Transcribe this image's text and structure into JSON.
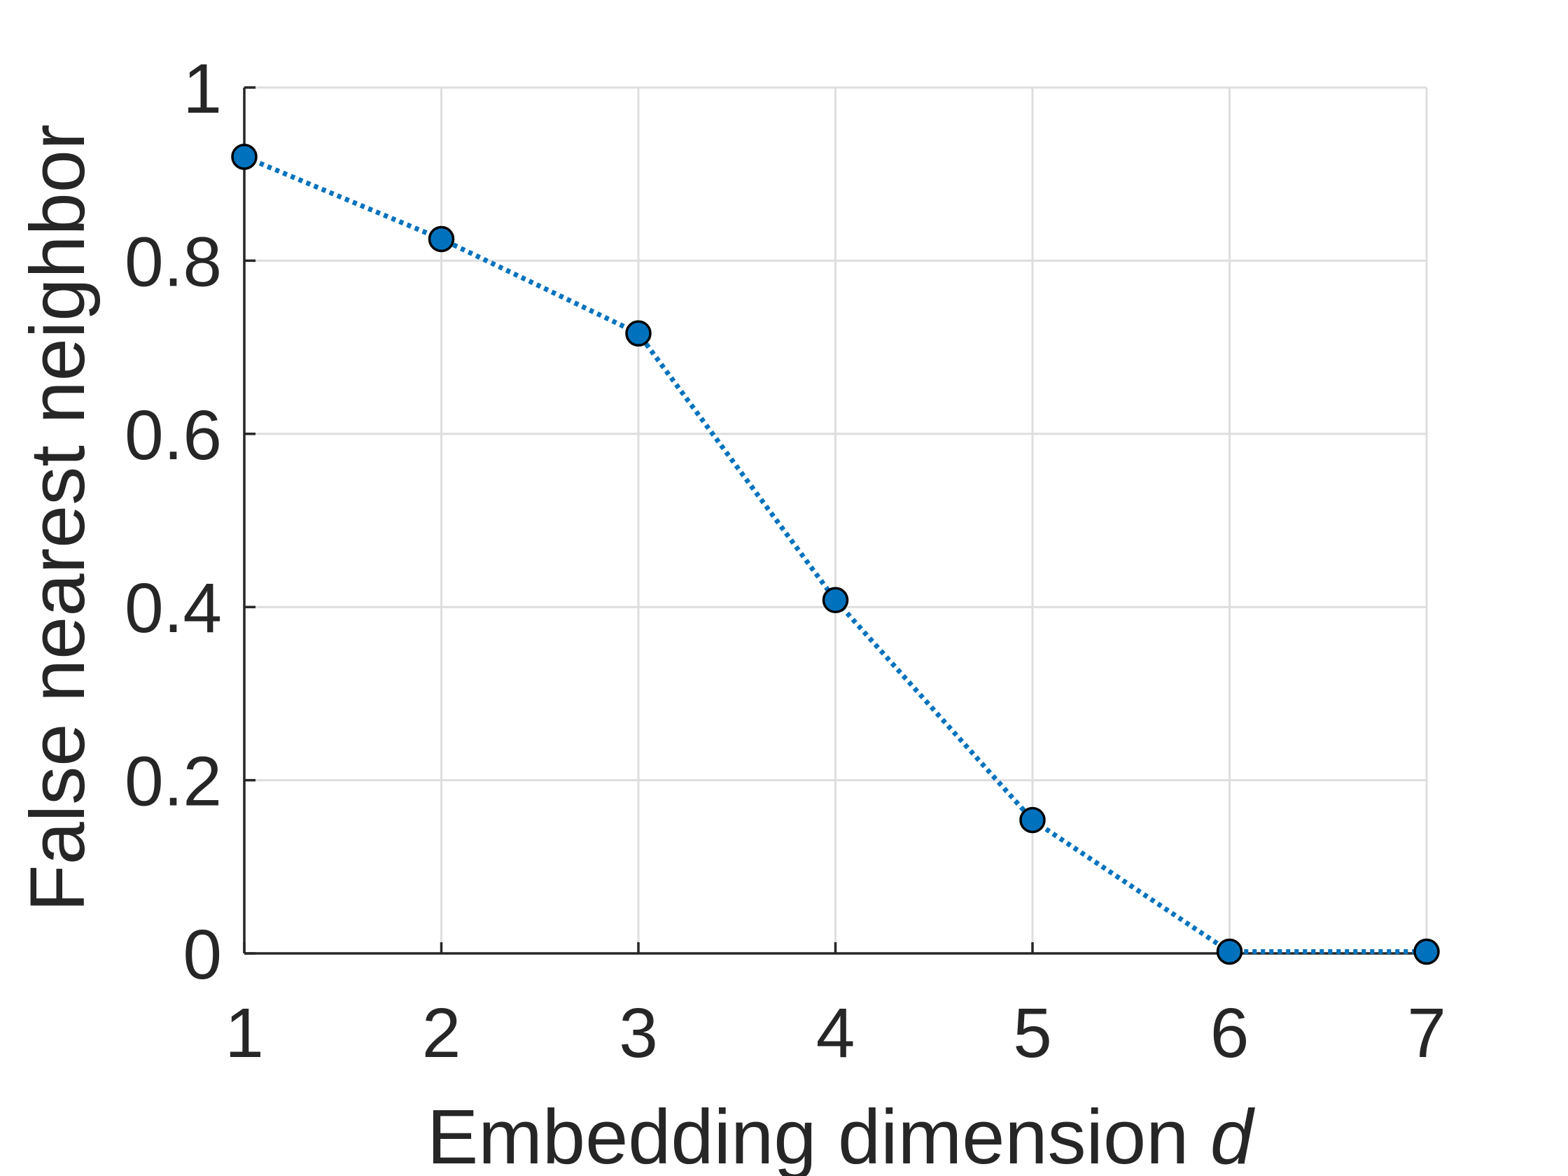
{
  "chart_data": {
    "type": "line",
    "x": [
      1,
      2,
      3,
      4,
      5,
      6,
      7
    ],
    "series": [
      {
        "values": [
          0.92,
          0.825,
          0.716,
          0.408,
          0.154,
          0.002,
          0.002
        ],
        "color": "#0072bd",
        "line_style": "dotted",
        "marker": "circle",
        "marker_edge_color": "#000000"
      }
    ],
    "xlabel": "Embedding dimension",
    "xlabel_var": "d",
    "ylabel": "False nearest neighbor",
    "xlim": [
      1,
      7
    ],
    "ylim": [
      0,
      1
    ],
    "xticks": [
      "1",
      "2",
      "3",
      "4",
      "5",
      "6",
      "7"
    ],
    "yticks": [
      "0",
      "0.2",
      "0.4",
      "0.6",
      "0.8",
      "1"
    ],
    "grid": true,
    "legend": false
  }
}
